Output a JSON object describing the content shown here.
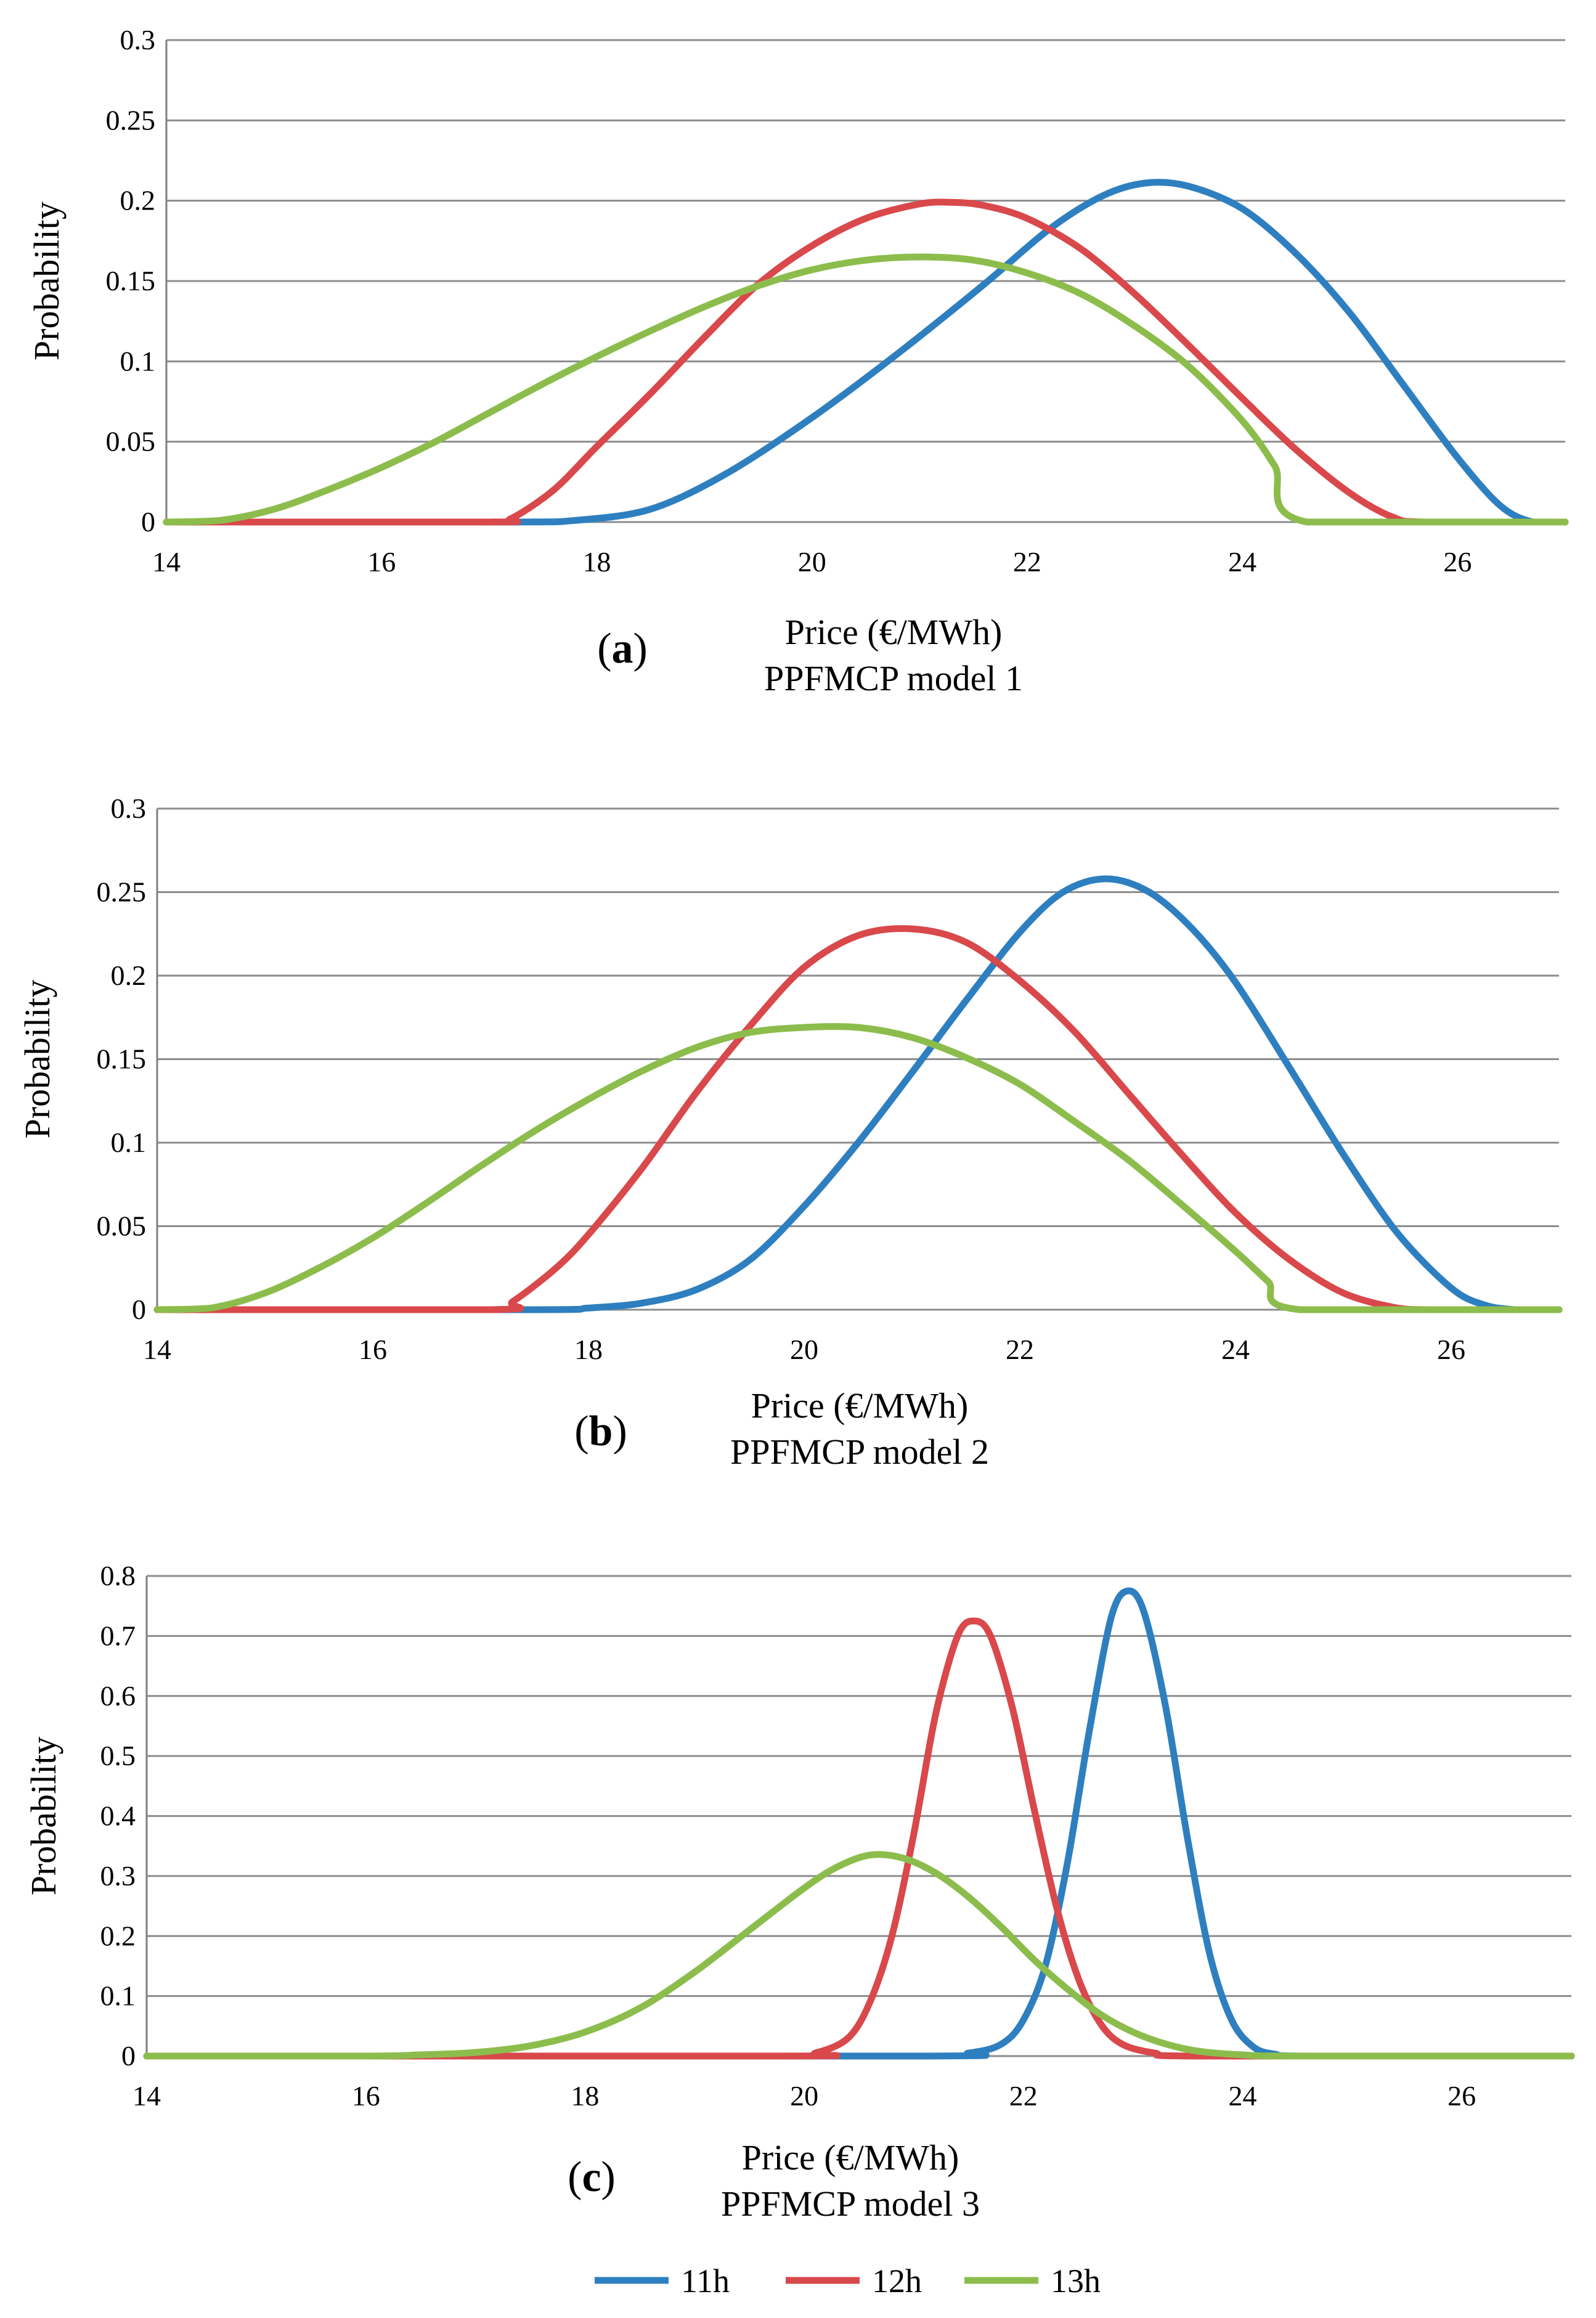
{
  "chart_data": [
    {
      "type": "line",
      "panel_label": "a",
      "xlabel": "Price (€/MWh)",
      "title": "PPFMCP model 1",
      "ylabel": "Probability",
      "xlim": [
        14,
        27
      ],
      "ylim": [
        0,
        0.3
      ],
      "xticks": [
        "14",
        "16",
        "18",
        "20",
        "22",
        "24",
        "26"
      ],
      "yticks": [
        "0",
        "0.05",
        "0.1",
        "0.15",
        "0.2",
        "0.25",
        "0.3"
      ],
      "grid": true,
      "series": [
        {
          "name": "11h",
          "x": [
            14,
            17.2,
            17.8,
            18.5,
            19.2,
            20,
            20.8,
            21.6,
            22.2,
            22.7,
            23.1,
            23.5,
            24,
            24.5,
            25,
            25.5,
            26,
            26.4,
            26.7,
            27
          ],
          "y": [
            0,
            0,
            0.001,
            0.008,
            0.03,
            0.065,
            0.105,
            0.148,
            0.182,
            0.203,
            0.211,
            0.209,
            0.195,
            0.167,
            0.13,
            0.085,
            0.04,
            0.01,
            0,
            0
          ]
        },
        {
          "name": "12h",
          "x": [
            14,
            17,
            17.2,
            17.6,
            18,
            18.5,
            19,
            19.5,
            20,
            20.5,
            21,
            21.3,
            21.6,
            22,
            22.5,
            23,
            23.5,
            24,
            24.5,
            25,
            25.4,
            25.7,
            27
          ],
          "y": [
            0,
            0,
            0.002,
            0.02,
            0.047,
            0.08,
            0.115,
            0.148,
            0.172,
            0.189,
            0.198,
            0.199,
            0.197,
            0.189,
            0.17,
            0.142,
            0.11,
            0.077,
            0.045,
            0.018,
            0.003,
            0,
            0
          ]
        },
        {
          "name": "13h",
          "x": [
            14,
            14.5,
            15,
            15.5,
            16,
            16.5,
            17,
            17.5,
            18,
            18.5,
            19,
            19.5,
            20,
            20.5,
            21,
            21.5,
            22,
            22.5,
            23,
            23.5,
            24,
            24.3,
            24.6,
            27
          ],
          "y": [
            0,
            0.001,
            0.008,
            0.02,
            0.034,
            0.05,
            0.068,
            0.086,
            0.103,
            0.119,
            0.134,
            0.147,
            0.157,
            0.163,
            0.165,
            0.163,
            0.155,
            0.142,
            0.122,
            0.097,
            0.063,
            0.035,
            0,
            0
          ]
        }
      ]
    },
    {
      "type": "line",
      "panel_label": "b",
      "xlabel": "Price (€/MWh)",
      "title": "PPFMCP model 2",
      "ylabel": "Probability",
      "xlim": [
        14,
        27
      ],
      "ylim": [
        0,
        0.3
      ],
      "xticks": [
        "14",
        "16",
        "18",
        "20",
        "22",
        "24",
        "26"
      ],
      "yticks": [
        "0",
        "0.05",
        "0.1",
        "0.15",
        "0.2",
        "0.25",
        "0.3"
      ],
      "grid": true,
      "series": [
        {
          "name": "11h",
          "x": [
            14,
            17.5,
            18,
            18.5,
            19,
            19.5,
            20,
            20.5,
            21,
            21.5,
            22,
            22.4,
            22.8,
            23.2,
            23.6,
            24,
            24.5,
            25,
            25.5,
            26,
            26.3,
            26.6,
            27
          ],
          "y": [
            0,
            0,
            0.001,
            0.004,
            0.012,
            0.03,
            0.062,
            0.1,
            0.142,
            0.185,
            0.226,
            0.25,
            0.258,
            0.25,
            0.228,
            0.196,
            0.145,
            0.093,
            0.046,
            0.013,
            0.003,
            0,
            0
          ]
        },
        {
          "name": "12h",
          "x": [
            14,
            17.1,
            17.3,
            17.7,
            18,
            18.5,
            19,
            19.5,
            20,
            20.5,
            21,
            21.5,
            22,
            22.5,
            23,
            23.5,
            24,
            24.5,
            25,
            25.5,
            25.8,
            27
          ],
          "y": [
            0,
            0,
            0.005,
            0.025,
            0.045,
            0.085,
            0.13,
            0.17,
            0.205,
            0.224,
            0.228,
            0.22,
            0.197,
            0.167,
            0.13,
            0.093,
            0.058,
            0.03,
            0.01,
            0.001,
            0,
            0
          ]
        },
        {
          "name": "13h",
          "x": [
            14,
            14.5,
            15,
            15.5,
            16,
            16.5,
            17,
            17.5,
            18,
            18.5,
            19,
            19.5,
            20,
            20.5,
            21,
            21.5,
            22,
            22.5,
            23,
            23.5,
            24,
            24.3,
            24.6,
            27
          ],
          "y": [
            0,
            0.001,
            0.01,
            0.025,
            0.043,
            0.064,
            0.086,
            0.107,
            0.126,
            0.143,
            0.157,
            0.166,
            0.169,
            0.169,
            0.163,
            0.151,
            0.135,
            0.113,
            0.09,
            0.063,
            0.035,
            0.017,
            0,
            0
          ]
        }
      ]
    },
    {
      "type": "line",
      "panel_label": "c",
      "xlabel": "Price (€/MWh)",
      "title": "PPFMCP model 3",
      "ylabel": "Probability",
      "xlim": [
        14,
        27
      ],
      "ylim": [
        0,
        0.8
      ],
      "xticks": [
        "14",
        "16",
        "18",
        "20",
        "22",
        "24",
        "26"
      ],
      "yticks": [
        "0",
        "0.1",
        "0.2",
        "0.3",
        "0.4",
        "0.5",
        "0.6",
        "0.7",
        "0.8"
      ],
      "grid": true,
      "series": [
        {
          "name": "11h",
          "x": [
            14,
            21,
            21.5,
            21.8,
            22,
            22.2,
            22.4,
            22.6,
            22.8,
            22.95,
            23.1,
            23.3,
            23.5,
            23.7,
            23.9,
            24.1,
            24.3,
            24.6,
            27
          ],
          "y": [
            0,
            0,
            0.005,
            0.02,
            0.06,
            0.15,
            0.32,
            0.54,
            0.73,
            0.775,
            0.74,
            0.58,
            0.36,
            0.17,
            0.06,
            0.015,
            0.003,
            0,
            0
          ]
        },
        {
          "name": "12h",
          "x": [
            14,
            19.8,
            20.1,
            20.4,
            20.6,
            20.8,
            21,
            21.2,
            21.4,
            21.55,
            21.7,
            21.9,
            22.1,
            22.3,
            22.5,
            22.7,
            22.9,
            23.2,
            23.6,
            27
          ],
          "y": [
            0,
            0,
            0.005,
            0.03,
            0.09,
            0.2,
            0.37,
            0.57,
            0.7,
            0.725,
            0.7,
            0.58,
            0.41,
            0.25,
            0.13,
            0.055,
            0.02,
            0.005,
            0,
            0
          ]
        },
        {
          "name": "13h",
          "x": [
            14,
            16,
            16.5,
            17,
            17.5,
            18,
            18.5,
            19,
            19.5,
            20,
            20.3,
            20.6,
            20.9,
            21.2,
            21.5,
            21.8,
            22.1,
            22.4,
            22.7,
            23,
            23.3,
            23.6,
            24,
            24.5,
            27
          ],
          "y": [
            0,
            0,
            0.002,
            0.006,
            0.017,
            0.04,
            0.08,
            0.14,
            0.21,
            0.28,
            0.315,
            0.335,
            0.33,
            0.305,
            0.265,
            0.215,
            0.16,
            0.112,
            0.07,
            0.04,
            0.02,
            0.008,
            0.002,
            0,
            0
          ]
        }
      ]
    }
  ],
  "legend": [
    {
      "name": "11h",
      "color": "#2e7fc0"
    },
    {
      "name": "12h",
      "color": "#d9484b"
    },
    {
      "name": "13h",
      "color": "#8cbd4c"
    }
  ]
}
